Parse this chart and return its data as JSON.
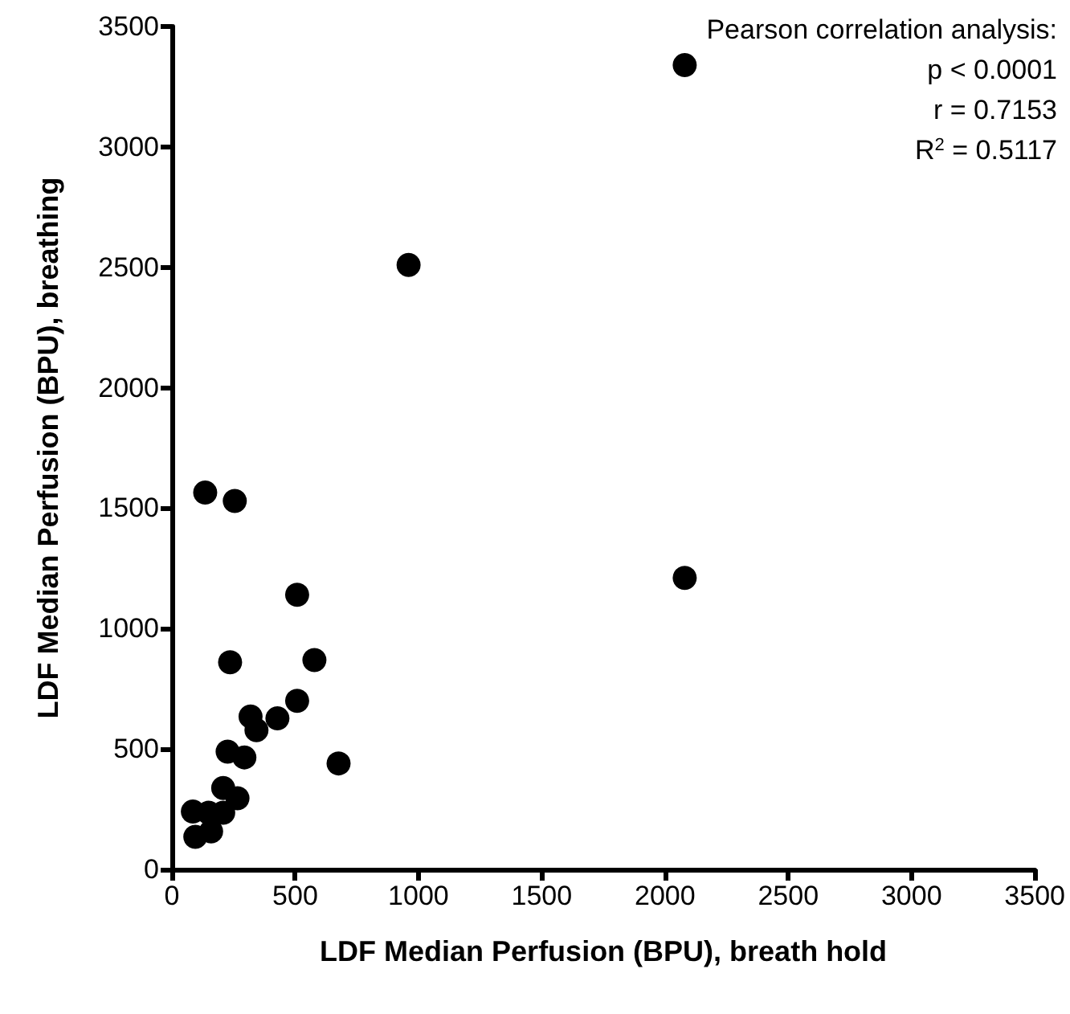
{
  "chart_data": {
    "type": "scatter",
    "xlabel": "LDF Median Perfusion (BPU), breath hold",
    "ylabel": "LDF Median Perfusion (BPU), breathing",
    "x": [
      135,
      255,
      508,
      236,
      578,
      508,
      319,
      428,
      343,
      226,
      294,
      676,
      208,
      266,
      85,
      149,
      208,
      159,
      95,
      2080,
      960,
      2080
    ],
    "values": [
      1565,
      1530,
      1140,
      860,
      869,
      700,
      635,
      627,
      578,
      489,
      465,
      440,
      338,
      295,
      240,
      235,
      235,
      158,
      135,
      3340,
      2510,
      1210
    ],
    "color": "#000000",
    "marker": "circle",
    "grid": false,
    "xlim": [
      0,
      3500
    ],
    "xticks": [
      0,
      500,
      1000,
      1500,
      2000,
      2500,
      3000,
      3500
    ],
    "ylim": [
      0,
      3500
    ],
    "yticks": [
      0,
      500,
      1000,
      1500,
      2000,
      2500,
      3000,
      3500
    ],
    "annotations": [
      "Pearson correlation analysis:",
      "p < 0.0001",
      "r = 0.7153",
      "R$^{2}$ = 0.5117"
    ]
  }
}
